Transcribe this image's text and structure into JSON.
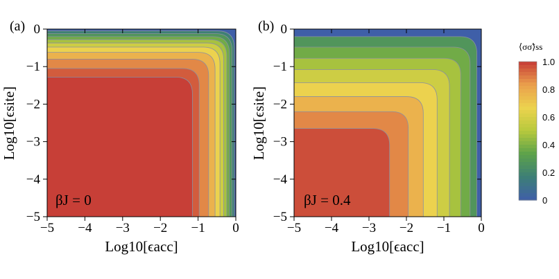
{
  "chart_data": [
    {
      "type": "heatmap",
      "panel_label": "(a)",
      "annotation": "βJ = 0",
      "xlabel": "Log10[ϵacc]",
      "ylabel": "Log10[ϵsite]",
      "xlim": [
        -5,
        0
      ],
      "ylim": [
        -5,
        0
      ],
      "xticks": [
        "−5",
        "−4",
        "−3",
        "−2",
        "−1",
        "0"
      ],
      "yticks": [
        "0",
        "−1",
        "−2",
        "−3",
        "−4",
        "−5"
      ],
      "contours": [
        {
          "level": 0.95,
          "corner": [
            -1.15,
            -1.28
          ]
        },
        {
          "level": 0.9,
          "corner": [
            -0.97,
            -1.05
          ]
        },
        {
          "level": 0.8,
          "corner": [
            -0.72,
            -0.8
          ]
        },
        {
          "level": 0.7,
          "corner": [
            -0.55,
            -0.62
          ]
        },
        {
          "level": 0.6,
          "corner": [
            -0.42,
            -0.48
          ]
        },
        {
          "level": 0.5,
          "corner": [
            -0.32,
            -0.37
          ]
        },
        {
          "level": 0.4,
          "corner": [
            -0.24,
            -0.28
          ]
        },
        {
          "level": 0.3,
          "corner": [
            -0.17,
            -0.2
          ]
        },
        {
          "level": 0.2,
          "corner": [
            -0.1,
            -0.12
          ]
        },
        {
          "level": 0.1,
          "corner": [
            -0.04,
            -0.05
          ]
        }
      ]
    },
    {
      "type": "heatmap",
      "panel_label": "(b)",
      "annotation": "βJ = 0.4",
      "xlabel": "Log10[ϵacc]",
      "ylabel": "Log10[ϵsite]",
      "xlim": [
        -5,
        0
      ],
      "ylim": [
        -5,
        0
      ],
      "xticks": [
        "−5",
        "−4",
        "−3",
        "−2",
        "−1",
        "0"
      ],
      "yticks": [
        "0",
        "−1",
        "−2",
        "−3",
        "−4",
        "−5"
      ],
      "contours": [
        {
          "level": 0.9,
          "corner": [
            -2.45,
            -2.65
          ]
        },
        {
          "level": 0.8,
          "corner": [
            -1.95,
            -2.2
          ]
        },
        {
          "level": 0.7,
          "corner": [
            -1.55,
            -1.8
          ]
        },
        {
          "level": 0.6,
          "corner": [
            -1.18,
            -1.43
          ]
        },
        {
          "level": 0.5,
          "corner": [
            -0.85,
            -1.08
          ]
        },
        {
          "level": 0.4,
          "corner": [
            -0.55,
            -0.78
          ]
        },
        {
          "level": 0.3,
          "corner": [
            -0.3,
            -0.48
          ]
        },
        {
          "level": 0.2,
          "corner": [
            -0.12,
            -0.2
          ]
        }
      ]
    }
  ],
  "colorbar": {
    "title": "⟨σσ̃⟩ss",
    "range": [
      0,
      1
    ],
    "ticks": [
      "1.0",
      "0.8",
      "0.6",
      "0.4",
      "0.2",
      "0"
    ],
    "colors": [
      "#3f5fa8",
      "#3d7f76",
      "#5da24a",
      "#b7c93d",
      "#ecd34e",
      "#ea9e4c",
      "#c63c36"
    ]
  }
}
